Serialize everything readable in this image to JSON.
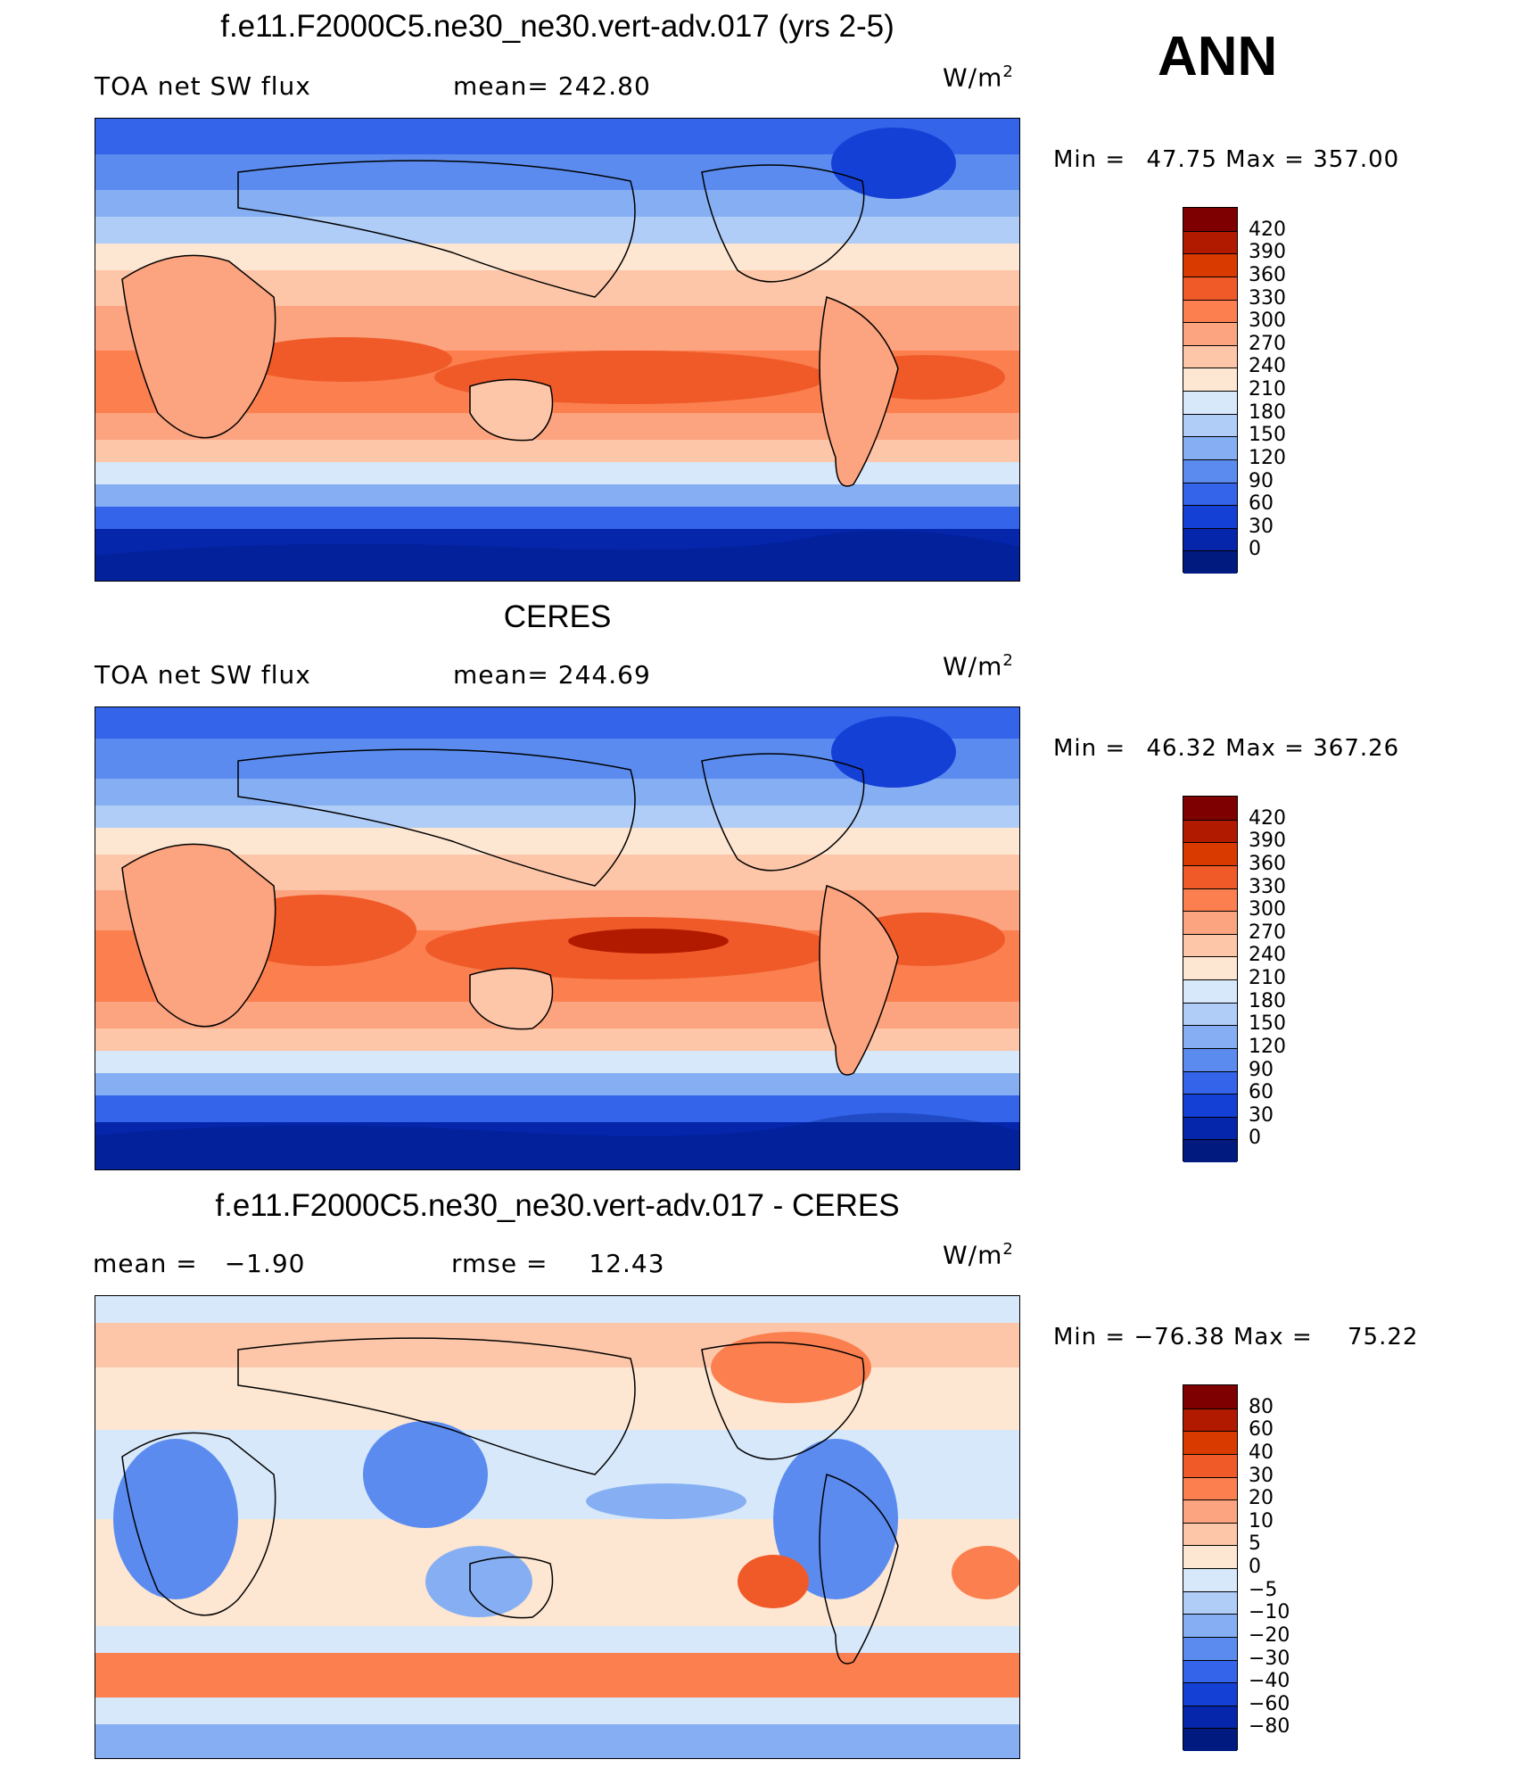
{
  "season": "ANN",
  "panels": [
    {
      "title": "f.e11.F2000C5.ne30_ne30.vert-adv.017 (yrs 2-5)",
      "left_label": "TOA net SW flux",
      "mid_label": "mean=",
      "mid_value": "242.80",
      "unit_base": "W/m",
      "unit_exp": "2",
      "min_label": "Min  =",
      "min_value": "47.75",
      "max_label": "Max  =",
      "max_value": "357.00",
      "levels": [
        "420",
        "390",
        "360",
        "330",
        "300",
        "270",
        "240",
        "210",
        "180",
        "150",
        "120",
        "90",
        "60",
        "30",
        "0"
      ],
      "colors": [
        "#7f0000",
        "#b21a00",
        "#d93a00",
        "#f05a28",
        "#fb7f4f",
        "#fca37f",
        "#fdc6a8",
        "#fde6d2",
        "#d6e8fa",
        "#b0cdf7",
        "#86aff3",
        "#5b8bef",
        "#3364ea",
        "#1440d6",
        "#0525aa",
        "#001a80"
      ]
    },
    {
      "title": "CERES",
      "left_label": "TOA net SW flux",
      "mid_label": "mean=",
      "mid_value": "244.69",
      "unit_base": "W/m",
      "unit_exp": "2",
      "min_label": "Min  =",
      "min_value": "46.32",
      "max_label": "Max  =",
      "max_value": "367.26",
      "levels": [
        "420",
        "390",
        "360",
        "330",
        "300",
        "270",
        "240",
        "210",
        "180",
        "150",
        "120",
        "90",
        "60",
        "30",
        "0"
      ],
      "colors": [
        "#7f0000",
        "#b21a00",
        "#d93a00",
        "#f05a28",
        "#fb7f4f",
        "#fca37f",
        "#fdc6a8",
        "#fde6d2",
        "#d6e8fa",
        "#b0cdf7",
        "#86aff3",
        "#5b8bef",
        "#3364ea",
        "#1440d6",
        "#0525aa",
        "#001a80"
      ]
    },
    {
      "title": "f.e11.F2000C5.ne30_ne30.vert-adv.017 - CERES",
      "left_label": "mean  =",
      "left_value": "−1.90",
      "mid_label": "rmse  =",
      "mid_value": "12.43",
      "unit_base": "W/m",
      "unit_exp": "2",
      "min_label": "Min  =",
      "min_value": "−76.38",
      "max_label": "Max  =",
      "max_value": "75.22",
      "levels": [
        "80",
        "60",
        "40",
        "30",
        "20",
        "10",
        "5",
        "0",
        "−5",
        "−10",
        "−20",
        "−30",
        "−40",
        "−60",
        "−80"
      ],
      "colors": [
        "#7f0000",
        "#b21a00",
        "#d93a00",
        "#f05a28",
        "#fb7f4f",
        "#fca37f",
        "#fdc6a8",
        "#fde6d2",
        "#d6e8fa",
        "#b0cdf7",
        "#86aff3",
        "#5b8bef",
        "#3364ea",
        "#1440d6",
        "#0525aa",
        "#001a80"
      ]
    }
  ],
  "chart_data": {
    "type": "heatmap",
    "maps": [
      {
        "variable": "TOA net SW flux",
        "mean": 242.8,
        "min": 47.75,
        "max": 357.0,
        "units": "W/m2"
      },
      {
        "variable": "TOA net SW flux",
        "mean": 244.69,
        "min": 46.32,
        "max": 367.26,
        "units": "W/m2"
      },
      {
        "variable": "difference",
        "mean": -1.9,
        "rmse": 12.43,
        "min": -76.38,
        "max": 75.22,
        "units": "W/m2"
      }
    ]
  }
}
